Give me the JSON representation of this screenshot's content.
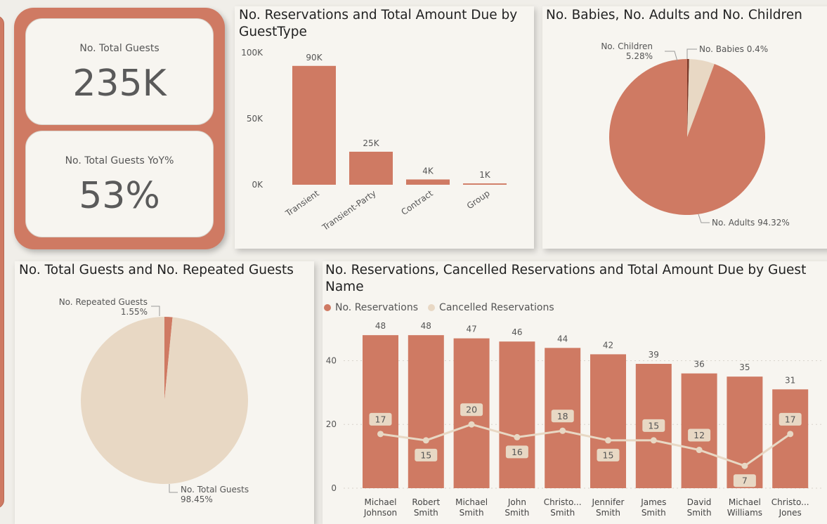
{
  "kpis": {
    "total_guests": {
      "label": "No. Total Guests",
      "value": "235K"
    },
    "yoy": {
      "label": "No. Total Guests YoY%",
      "value": "53%"
    }
  },
  "panels": {
    "guest_type_title": "No. Reservations and Total Amount Due by GuestType",
    "babies_title": "No. Babies, No. Adults and No. Children",
    "repeated_title": "No. Total Guests and No. Repeated Guests",
    "guest_name_title": "No. Reservations, Cancelled Reservations and Total Amount Due by Guest Name"
  },
  "colors": {
    "primary": "#cf7a63",
    "secondary": "#e8d8c4",
    "background": "#f7f5f0"
  },
  "chart_data": [
    {
      "type": "bar",
      "id": "guest_type",
      "categories": [
        "Transient",
        "Transient-Party",
        "Contract",
        "Group"
      ],
      "values": [
        90000,
        25000,
        4000,
        1000
      ],
      "data_labels": [
        "90K",
        "25K",
        "4K",
        "1K"
      ],
      "yticks": [
        "0K",
        "50K",
        "100K"
      ],
      "ylim": [
        0,
        100000
      ]
    },
    {
      "type": "pie",
      "id": "babies_adults_children",
      "slices": [
        {
          "name": "No. Babies",
          "value": 0.4,
          "label": "No. Babies 0.4%",
          "color": "#7a3a2a"
        },
        {
          "name": "No. Children",
          "value": 5.28,
          "label": "No. Children",
          "pct": "5.28%",
          "color": "#e8d8c4"
        },
        {
          "name": "No. Adults",
          "value": 94.32,
          "label": "No. Adults 94.32%",
          "color": "#cf7a63"
        }
      ]
    },
    {
      "type": "pie",
      "id": "total_vs_repeated",
      "slices": [
        {
          "name": "No. Repeated Guests",
          "value": 1.55,
          "label": "No. Repeated Guests",
          "pct": "1.55%",
          "color": "#cf7a63"
        },
        {
          "name": "No. Total Guests",
          "value": 98.45,
          "label": "No. Total Guests",
          "pct": "98.45%",
          "color": "#e8d8c4"
        }
      ]
    },
    {
      "type": "bar",
      "id": "guest_name",
      "legend": [
        "No. Reservations",
        "Cancelled Reservations"
      ],
      "categories": [
        [
          "Michael",
          "Johnson"
        ],
        [
          "Robert",
          "Smith"
        ],
        [
          "Michael",
          "Smith"
        ],
        [
          "John",
          "Smith"
        ],
        [
          "Christo...",
          "Smith"
        ],
        [
          "Jennifer",
          "Smith"
        ],
        [
          "James",
          "Smith"
        ],
        [
          "David",
          "Smith"
        ],
        [
          "Michael",
          "Williams"
        ],
        [
          "Christo...",
          "Jones"
        ]
      ],
      "series": [
        {
          "name": "No. Reservations",
          "values": [
            48,
            48,
            47,
            46,
            44,
            42,
            39,
            36,
            35,
            31
          ]
        },
        {
          "name": "Cancelled Reservations",
          "values": [
            17,
            15,
            20,
            16,
            18,
            15,
            15,
            12,
            7,
            17
          ]
        }
      ],
      "yticks": [
        "0",
        "20",
        "40"
      ],
      "ylim": [
        0,
        52
      ]
    }
  ]
}
